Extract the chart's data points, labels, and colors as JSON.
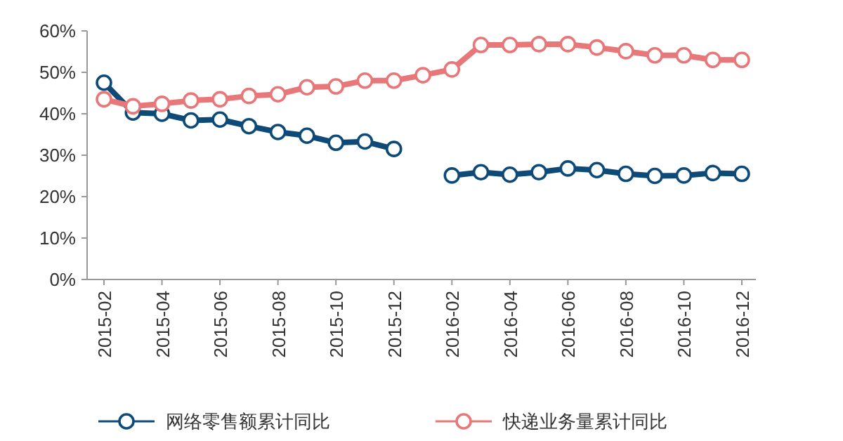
{
  "chart_data": {
    "type": "line",
    "categories": [
      "2015-02",
      null,
      "2015-04",
      null,
      "2015-06",
      null,
      "2015-08",
      null,
      "2015-10",
      null,
      "2015-12",
      null,
      "2016-02",
      null,
      "2016-04",
      null,
      "2016-06",
      null,
      "2016-08",
      null,
      "2016-10",
      null,
      "2016-12"
    ],
    "series": [
      {
        "name": "网络零售额累计同比",
        "color": "#0e4a78",
        "values": [
          47.5,
          40.3,
          40,
          38.4,
          38.6,
          37,
          35.6,
          34.7,
          33,
          33.3,
          31.5,
          null,
          25.1,
          25.9,
          25.3,
          25.9,
          26.8,
          26.4,
          25.5,
          25,
          25.1,
          25.7,
          25.5
        ]
      },
      {
        "name": "快递业务量累计同比",
        "color": "#e8777a",
        "values": [
          43.5,
          41.8,
          42.4,
          43.2,
          43.5,
          44.3,
          44.7,
          46.4,
          46.6,
          48,
          48,
          49.3,
          50.7,
          56.6,
          56.6,
          56.8,
          56.8,
          56,
          55.1,
          54.1,
          54.1,
          53,
          53
        ]
      }
    ],
    "ylim": [
      0,
      60
    ],
    "yticks": [
      {
        "value": 0,
        "label": "0%"
      },
      {
        "value": 10,
        "label": "10%"
      },
      {
        "value": 20,
        "label": "20%"
      },
      {
        "value": 30,
        "label": "30%"
      },
      {
        "value": 40,
        "label": "40%"
      },
      {
        "value": 50,
        "label": "50%"
      },
      {
        "value": 60,
        "label": "60%"
      }
    ],
    "grid": false,
    "legend": "bottom",
    "marker": "circle",
    "line_style": "solid"
  }
}
